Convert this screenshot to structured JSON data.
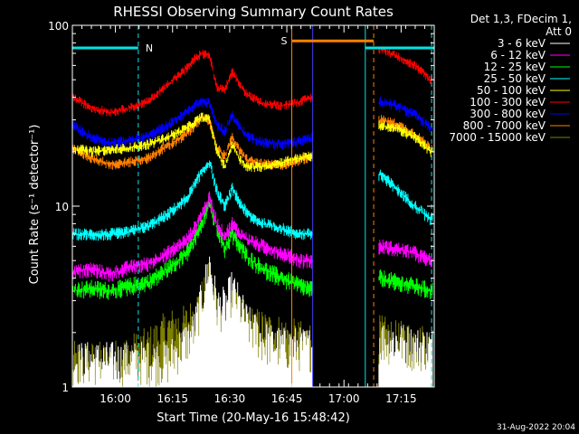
{
  "chart_data": {
    "type": "line",
    "title": "RHESSI Observing Summary Count Rates",
    "xlabel": "Start Time (20-May-16 15:48:42)",
    "ylabel": "Count Rate (s⁻¹ detector⁻¹)",
    "yscale": "log",
    "ylim": [
      1,
      100
    ],
    "xlim_minutes": [
      0,
      95
    ],
    "x_tick_labels": [
      "16:00",
      "16:15",
      "16:30",
      "16:45",
      "17:00",
      "17:15"
    ],
    "x_tick_minutes": [
      11.3,
      26.3,
      41.3,
      56.3,
      71.3,
      86.3
    ],
    "y_tick_labels": [
      "1",
      "10",
      "100"
    ],
    "y_tick_values": [
      1,
      10,
      100
    ],
    "legend_header": [
      "Det 1,3, FDecim 1,",
      "Att 0"
    ],
    "legend_placement": "right",
    "footer_date": "31-Aug-2022 20:04",
    "annotations": [
      {
        "label": "N",
        "color": "#00e5e5",
        "x_start_min": 0,
        "x_end_min": 17.3,
        "y": 75
      },
      {
        "label": "N",
        "color": "#00e5e5",
        "x_start_min": 76.9,
        "x_end_min": 95,
        "y": 75
      },
      {
        "label": "S",
        "color": "#ff7f00",
        "x_start_min": 57.6,
        "x_end_min": 79.1,
        "y": 82
      }
    ],
    "vertical_lines": [
      {
        "color": "#00e5e5",
        "style": "dashed",
        "x_min": 17.3
      },
      {
        "color": "#ff7f00",
        "style": "solid",
        "x_min": 57.6
      },
      {
        "color": "#4040ff",
        "style": "solid",
        "x_min": 63.1
      },
      {
        "color": "#00e5e5",
        "style": "solid",
        "x_min": 76.9
      },
      {
        "color": "#ff7f00",
        "style": "dashed",
        "x_min": 79.1
      },
      {
        "color": "#00e5e5",
        "style": "dashed",
        "x_min": 94.3
      }
    ],
    "data_gap_minutes": [
      63.1,
      80.5
    ],
    "x_minutes": [
      0,
      5,
      10,
      15,
      20,
      25,
      30,
      32,
      34,
      36,
      38,
      40,
      42,
      44,
      46,
      50,
      55,
      60,
      63,
      81,
      85,
      90,
      94
    ],
    "series": [
      {
        "name": "3 - 6 keV",
        "color": "#ffffff",
        "values": [
          1.0,
          1.0,
          1.0,
          1.0,
          1.0,
          1.0,
          1.3,
          1.5,
          2.2,
          3.5,
          2.0,
          2.0,
          2.5,
          2.0,
          1.6,
          1.3,
          1.2,
          1.2,
          1.2,
          1.3,
          1.3,
          1.2,
          1.2
        ]
      },
      {
        "name": "6 - 12 keV",
        "color": "#ff00ff",
        "values": [
          4.3,
          4.5,
          4.2,
          4.6,
          4.8,
          5.5,
          6.5,
          7.5,
          9.0,
          11.0,
          8.0,
          6.8,
          8.0,
          7.0,
          6.5,
          6.0,
          5.5,
          5.0,
          5.0,
          6.0,
          5.8,
          5.5,
          5.0
        ]
      },
      {
        "name": "12 - 25 keV",
        "color": "#00ff00",
        "values": [
          3.4,
          3.5,
          3.4,
          3.6,
          3.8,
          4.5,
          5.5,
          6.5,
          8.0,
          10.5,
          7.5,
          5.8,
          7.0,
          6.0,
          5.2,
          4.5,
          4.0,
          3.6,
          3.5,
          4.0,
          3.8,
          3.6,
          3.4
        ]
      },
      {
        "name": "25 - 50 keV",
        "color": "#00ffff",
        "values": [
          7.0,
          7.0,
          7.0,
          7.2,
          7.8,
          9.0,
          11.0,
          13.0,
          15.5,
          17.5,
          12.0,
          10.0,
          12.5,
          10.5,
          9.0,
          8.0,
          7.5,
          7.0,
          7.0,
          15.0,
          12.5,
          10.0,
          8.5
        ]
      },
      {
        "name": "50 - 100 keV",
        "color": "#ffff00",
        "values": [
          21.0,
          20.0,
          20.5,
          21.0,
          22.0,
          24.0,
          27.0,
          29.0,
          31.0,
          30.0,
          20.0,
          16.5,
          22.0,
          18.0,
          16.5,
          16.5,
          17.5,
          18.5,
          19.0,
          28.0,
          27.0,
          24.0,
          20.0
        ]
      },
      {
        "name": "100 - 300 keV",
        "color": "#ff0000",
        "values": [
          40.0,
          35.0,
          33.0,
          35.0,
          38.0,
          47.0,
          58.0,
          65.0,
          70.0,
          68.0,
          45.0,
          44.0,
          55.0,
          47.0,
          41.0,
          37.0,
          36.0,
          38.0,
          40.0,
          74.0,
          68.0,
          60.0,
          50.0
        ]
      },
      {
        "name": "300 - 800 keV",
        "color": "#0000ff",
        "values": [
          28.0,
          24.0,
          22.5,
          23.0,
          24.5,
          28.0,
          33.0,
          36.0,
          38.0,
          37.0,
          28.0,
          26.0,
          32.0,
          27.0,
          24.5,
          22.5,
          22.0,
          23.0,
          24.0,
          38.0,
          36.0,
          32.0,
          27.0
        ]
      },
      {
        "name": "800 - 7000 keV",
        "color": "#ff7f00",
        "values": [
          21.0,
          18.5,
          17.0,
          17.5,
          18.5,
          21.5,
          25.0,
          28.0,
          31.0,
          29.5,
          21.0,
          19.0,
          24.0,
          20.0,
          18.0,
          17.0,
          17.0,
          18.0,
          19.0,
          30.0,
          28.5,
          25.0,
          21.0
        ]
      },
      {
        "name": "7000 - 15000 keV",
        "color": "#808000",
        "values": [
          1.0,
          1.0,
          1.0,
          1.1,
          1.2,
          1.5,
          1.6,
          1.8,
          2.2,
          2.8,
          2.0,
          1.8,
          2.0,
          1.8,
          1.6,
          1.5,
          1.4,
          1.3,
          1.3,
          1.4,
          1.3,
          1.3,
          1.2
        ]
      }
    ]
  }
}
